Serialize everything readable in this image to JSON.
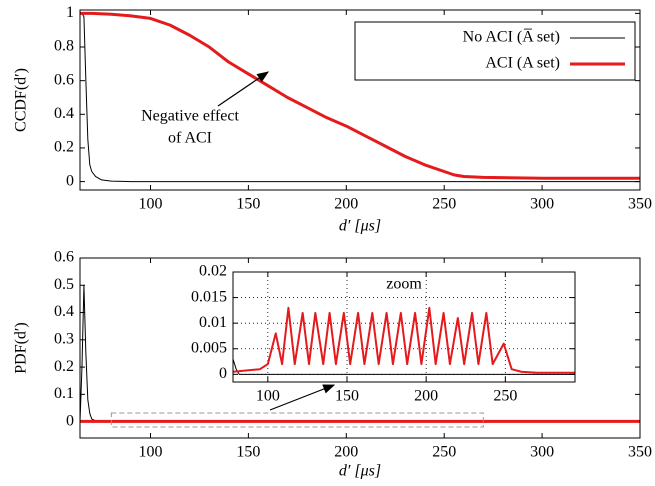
{
  "chart_data": [
    {
      "type": "line",
      "ylabel": "CCDF(d′)",
      "xlabel": "d′ [μs]",
      "annotation": [
        "Negative effect",
        "of ACI"
      ],
      "xlim": [
        64,
        350
      ],
      "ylim": [
        -0.05,
        1.02
      ],
      "xticks": [
        100,
        150,
        200,
        250,
        300,
        350
      ],
      "yticks": [
        0,
        0.2,
        0.4,
        0.6,
        0.8,
        1
      ],
      "grid": false,
      "legend": "top-right",
      "series": [
        {
          "name": "No ACI (A̅ set)",
          "color": "#000000",
          "width": 1,
          "x": [
            64,
            65,
            66,
            67,
            68,
            69,
            70,
            72,
            75,
            80,
            90,
            350
          ],
          "values": [
            1,
            1,
            0.98,
            0.6,
            0.25,
            0.1,
            0.06,
            0.03,
            0.01,
            0.003,
            0,
            0
          ]
        },
        {
          "name": "ACI (A set)",
          "color": "#e41a1c",
          "width": 3,
          "x": [
            64,
            70,
            80,
            90,
            100,
            110,
            120,
            130,
            140,
            150,
            160,
            170,
            180,
            190,
            200,
            210,
            220,
            230,
            240,
            250,
            255,
            260,
            270,
            300,
            350
          ],
          "values": [
            1,
            1,
            0.995,
            0.985,
            0.97,
            0.93,
            0.87,
            0.8,
            0.71,
            0.64,
            0.57,
            0.5,
            0.44,
            0.38,
            0.33,
            0.27,
            0.21,
            0.15,
            0.1,
            0.06,
            0.04,
            0.03,
            0.025,
            0.02,
            0.02
          ]
        }
      ]
    },
    {
      "type": "line",
      "ylabel": "PDF(d′)",
      "xlabel": "d′ [μs]",
      "xlim": [
        64,
        350
      ],
      "ylim": [
        -0.06,
        0.6
      ],
      "xticks": [
        100,
        150,
        200,
        250,
        300,
        350
      ],
      "yticks": [
        0,
        0.1,
        0.2,
        0.3,
        0.4,
        0.5,
        0.6
      ],
      "grid": false,
      "series": [
        {
          "color": "#000000",
          "width": 1,
          "x": [
            64,
            65,
            66,
            67,
            68,
            69,
            70,
            72,
            75,
            350
          ],
          "values": [
            0,
            0.2,
            0.5,
            0.25,
            0.08,
            0.03,
            0.01,
            0.003,
            0,
            0
          ]
        },
        {
          "color": "#e41a1c",
          "width": 3,
          "x": [
            64,
            350
          ],
          "values": [
            0.001,
            0.001
          ]
        }
      ]
    },
    {
      "type": "line",
      "title": "zoom",
      "xlim": [
        78,
        294
      ],
      "ylim": [
        -0.0015,
        0.02
      ],
      "xticks": [
        100,
        150,
        200,
        250
      ],
      "yticks": [
        0,
        0.005,
        0.01,
        0.015,
        0.02
      ],
      "grid": true,
      "series": [
        {
          "color": "#000000",
          "width": 1,
          "x": [
            78,
            80,
            82,
            90,
            294
          ],
          "values": [
            0.003,
            0.001,
            0,
            0,
            0
          ]
        },
        {
          "color": "#e41a1c",
          "width": 2,
          "x": [
            78,
            95,
            100,
            105,
            109,
            113,
            117,
            122,
            126,
            130,
            135,
            139,
            143,
            148,
            152,
            157,
            161,
            166,
            170,
            175,
            179,
            184,
            188,
            193,
            197,
            202,
            206,
            211,
            215,
            220,
            224,
            229,
            233,
            238,
            242,
            249,
            254,
            260,
            270,
            294
          ],
          "values": [
            0.0005,
            0.001,
            0.002,
            0.008,
            0.002,
            0.013,
            0.002,
            0.012,
            0.002,
            0.012,
            0.002,
            0.012,
            0.002,
            0.012,
            0.002,
            0.012,
            0.002,
            0.012,
            0.002,
            0.012,
            0.002,
            0.012,
            0.002,
            0.012,
            0.002,
            0.013,
            0.002,
            0.012,
            0.002,
            0.011,
            0.002,
            0.012,
            0.002,
            0.012,
            0.002,
            0.006,
            0.001,
            0.0005,
            0.0003,
            0.0003
          ]
        }
      ]
    }
  ]
}
